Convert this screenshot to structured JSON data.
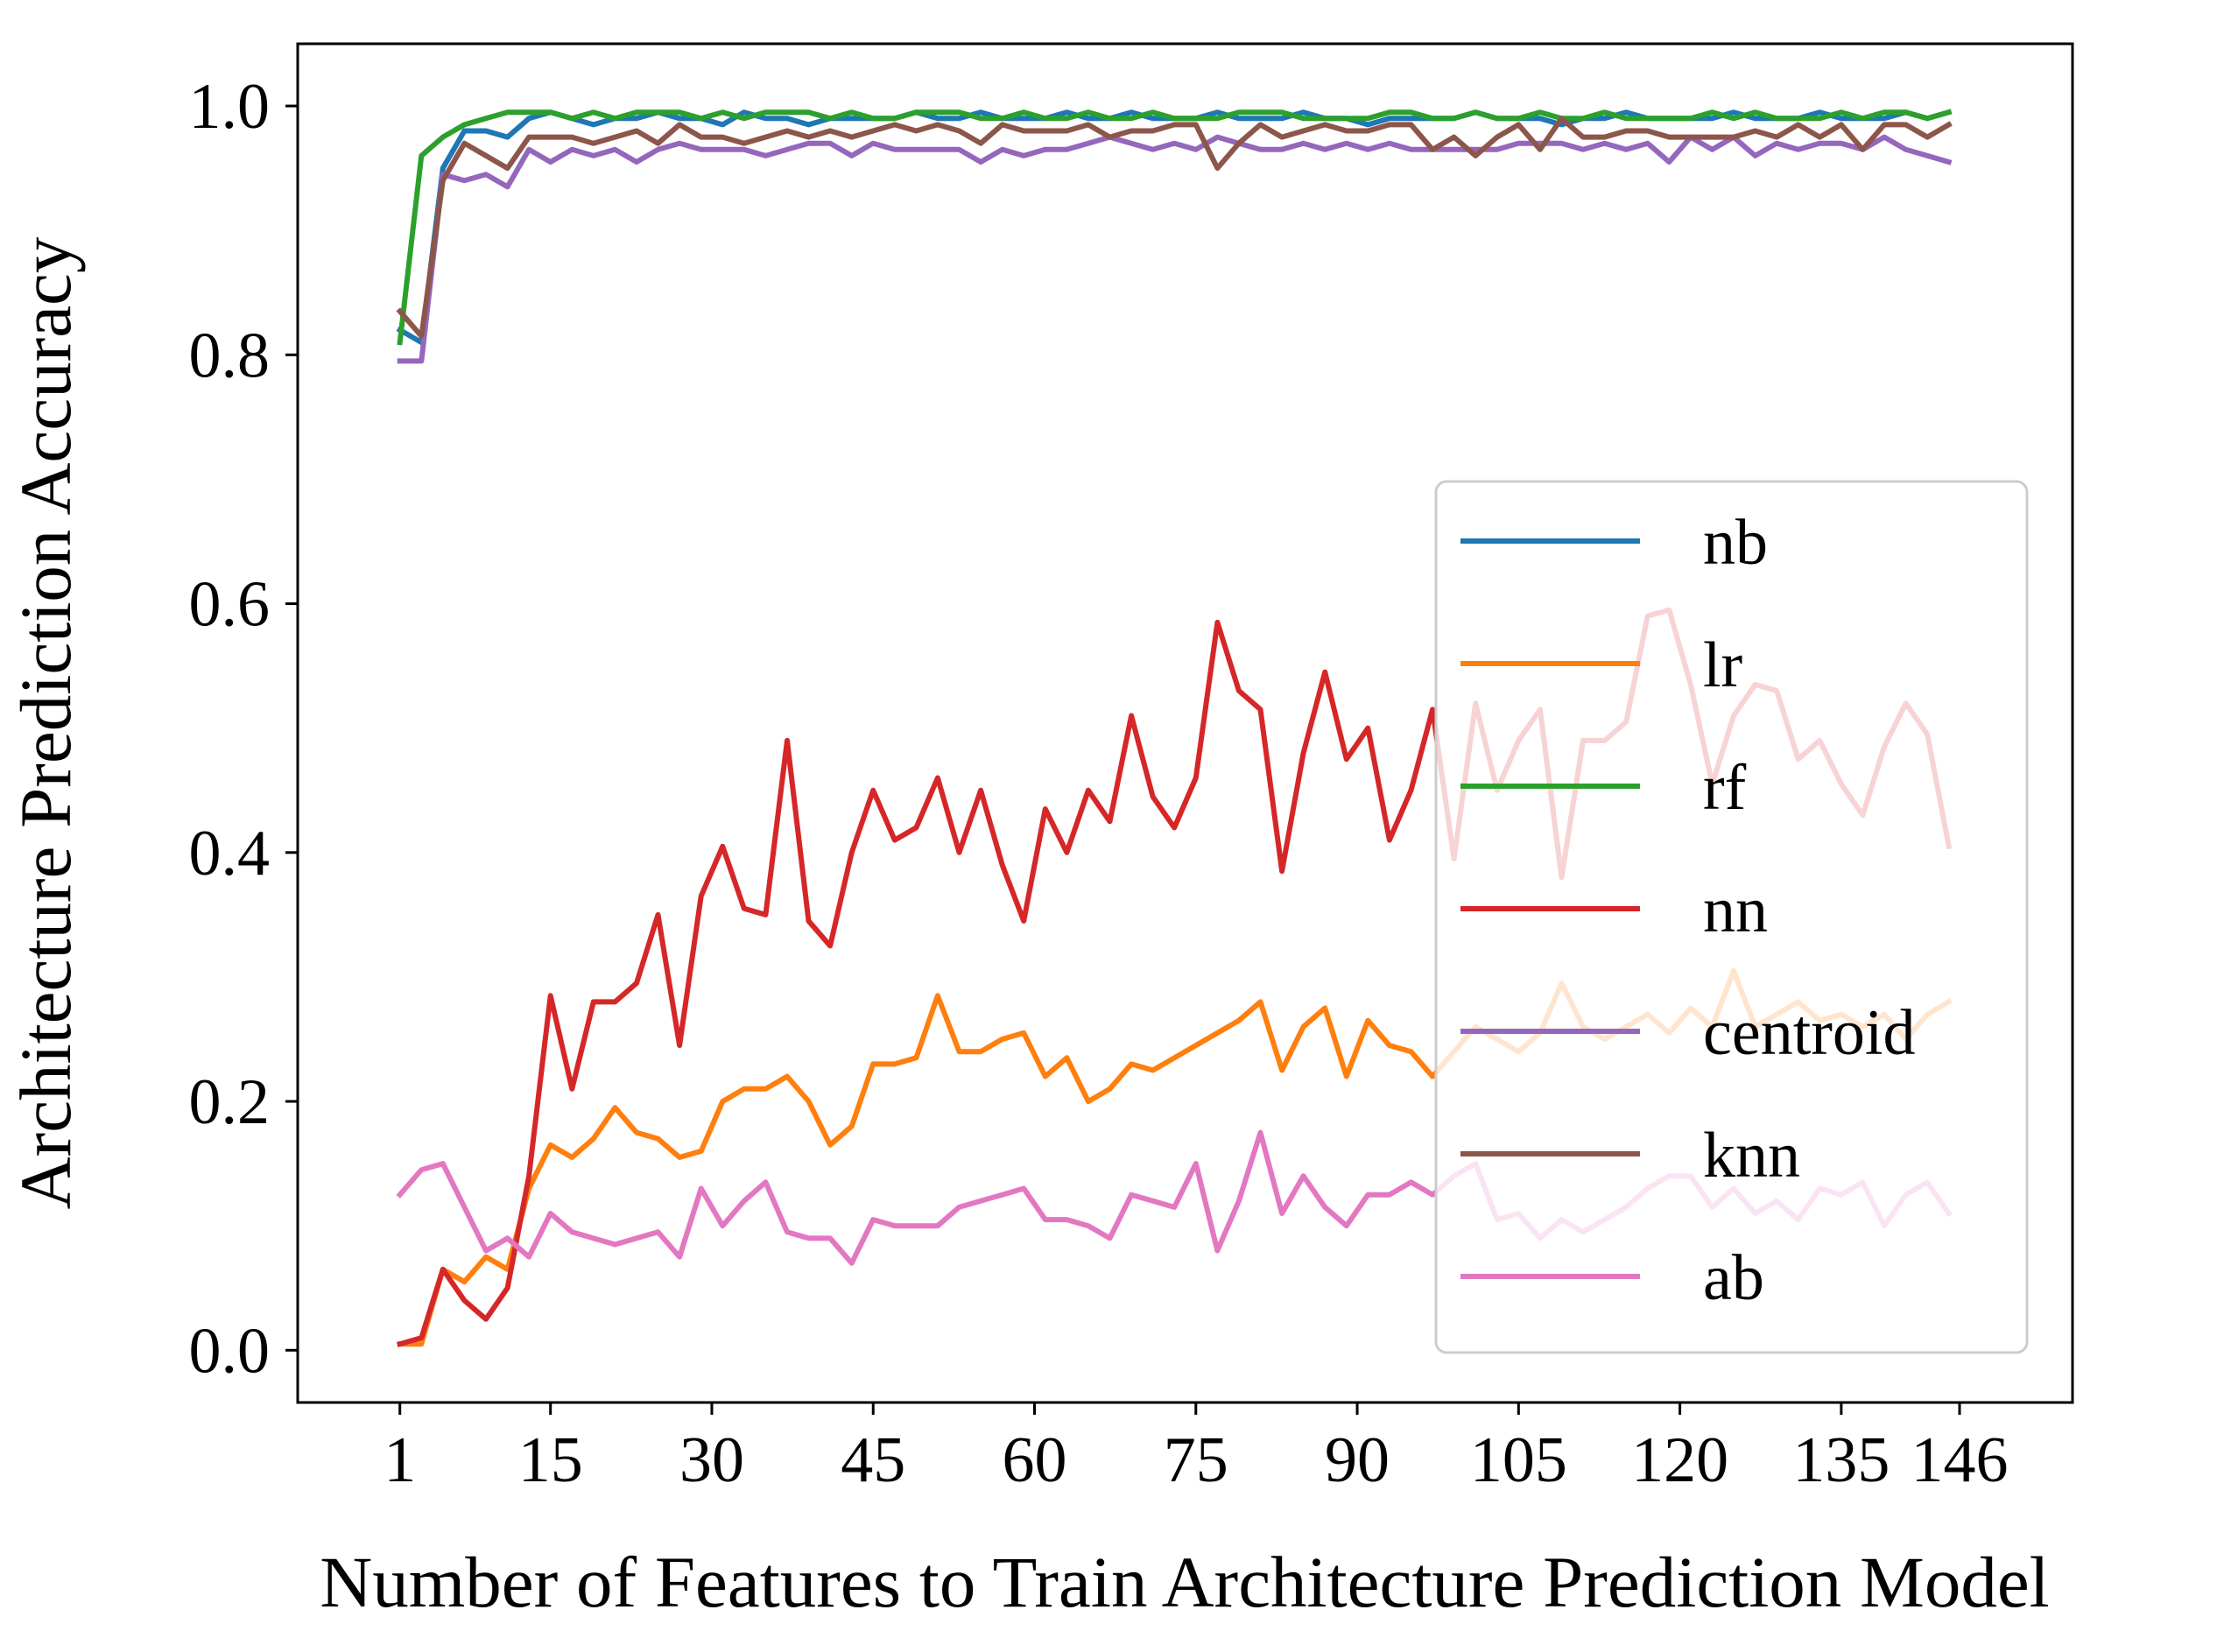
{
  "chart_data": {
    "type": "line",
    "xlabel": "Number of Features to Train Architecture Prediction Model",
    "ylabel": "Architecture Prediction Accuracy",
    "xlim": [
      -8.5,
      156.5
    ],
    "ylim": [
      -0.042,
      1.05
    ],
    "xticks": [
      1,
      15,
      30,
      45,
      60,
      75,
      90,
      105,
      120,
      135,
      146
    ],
    "xtick_labels": [
      "1",
      "15",
      "30",
      "45",
      "60",
      "75",
      "90",
      "105",
      "120",
      "135",
      "146"
    ],
    "yticks": [
      0.0,
      0.2,
      0.4,
      0.6,
      0.8,
      1.0
    ],
    "ytick_labels": [
      "0.0",
      "0.2",
      "0.4",
      "0.6",
      "0.8",
      "1.0"
    ],
    "grid": false,
    "legend_position": "lower-right",
    "x": [
      1,
      3,
      5,
      7,
      9,
      11,
      13,
      15,
      17,
      19,
      21,
      23,
      25,
      27,
      29,
      31,
      33,
      35,
      37,
      39,
      41,
      43,
      45,
      47,
      49,
      51,
      53,
      55,
      57,
      59,
      61,
      63,
      65,
      67,
      69,
      71,
      73,
      75,
      77,
      79,
      81,
      83,
      85,
      87,
      89,
      91,
      93,
      95,
      97,
      99,
      101,
      103,
      105,
      107,
      109,
      111,
      113,
      115,
      117,
      119,
      121,
      123,
      125,
      127,
      129,
      131,
      133,
      135,
      137,
      139,
      141,
      143,
      145
    ],
    "series": [
      {
        "name": "nb",
        "color": "#1f77b4",
        "values": [
          0.82,
          0.81,
          0.95,
          0.98,
          0.98,
          0.975,
          0.99,
          0.995,
          0.99,
          0.985,
          0.99,
          0.99,
          0.995,
          0.99,
          0.99,
          0.985,
          0.995,
          0.99,
          0.99,
          0.985,
          0.99,
          0.99,
          0.99,
          0.99,
          0.995,
          0.99,
          0.99,
          0.995,
          0.99,
          0.99,
          0.99,
          0.995,
          0.99,
          0.99,
          0.995,
          0.99,
          0.99,
          0.99,
          0.995,
          0.99,
          0.99,
          0.99,
          0.995,
          0.99,
          0.99,
          0.985,
          0.99,
          0.99,
          0.99,
          0.99,
          0.995,
          0.99,
          0.99,
          0.99,
          0.985,
          0.99,
          0.99,
          0.995,
          0.99,
          0.99,
          0.99,
          0.99,
          0.995,
          0.99,
          0.99,
          0.99,
          0.995,
          0.99,
          0.99,
          0.99,
          0.995,
          0.99,
          0.995
        ]
      },
      {
        "name": "lr",
        "color": "#ff7f0e",
        "values": [
          0.005,
          0.005,
          0.065,
          0.055,
          0.075,
          0.065,
          0.13,
          0.165,
          0.155,
          0.17,
          0.195,
          0.175,
          0.17,
          0.155,
          0.16,
          0.2,
          0.21,
          0.21,
          0.22,
          0.2,
          0.165,
          0.18,
          0.23,
          0.23,
          0.235,
          0.285,
          0.24,
          0.24,
          0.25,
          0.255,
          0.22,
          0.235,
          0.2,
          0.21,
          0.23,
          0.225,
          0.235,
          0.245,
          0.255,
          0.265,
          0.28,
          0.225,
          0.26,
          0.275,
          0.22,
          0.265,
          0.245,
          0.24,
          0.22,
          0.24,
          0.26,
          0.25,
          0.24,
          0.255,
          0.295,
          0.26,
          0.25,
          0.26,
          0.27,
          0.255,
          0.275,
          0.26,
          0.305,
          0.26,
          0.27,
          0.28,
          0.265,
          0.27,
          0.26,
          0.27,
          0.25,
          0.27,
          0.28
        ]
      },
      {
        "name": "rf",
        "color": "#2ca02c",
        "values": [
          0.81,
          0.96,
          0.975,
          0.985,
          0.99,
          0.995,
          0.995,
          0.995,
          0.99,
          0.995,
          0.99,
          0.995,
          0.995,
          0.995,
          0.99,
          0.995,
          0.99,
          0.995,
          0.995,
          0.995,
          0.99,
          0.995,
          0.99,
          0.99,
          0.995,
          0.995,
          0.995,
          0.99,
          0.99,
          0.995,
          0.99,
          0.99,
          0.995,
          0.99,
          0.99,
          0.995,
          0.99,
          0.99,
          0.99,
          0.995,
          0.995,
          0.995,
          0.99,
          0.99,
          0.99,
          0.99,
          0.995,
          0.995,
          0.99,
          0.99,
          0.995,
          0.99,
          0.99,
          0.995,
          0.99,
          0.99,
          0.995,
          0.99,
          0.99,
          0.99,
          0.99,
          0.995,
          0.99,
          0.995,
          0.99,
          0.99,
          0.99,
          0.995,
          0.99,
          0.995,
          0.995,
          0.99,
          0.995
        ]
      },
      {
        "name": "nn",
        "color": "#d62728",
        "values": [
          0.005,
          0.01,
          0.065,
          0.04,
          0.025,
          0.05,
          0.14,
          0.285,
          0.21,
          0.28,
          0.28,
          0.295,
          0.35,
          0.245,
          0.365,
          0.405,
          0.355,
          0.35,
          0.49,
          0.345,
          0.325,
          0.4,
          0.45,
          0.41,
          0.42,
          0.46,
          0.4,
          0.45,
          0.39,
          0.345,
          0.435,
          0.4,
          0.45,
          0.425,
          0.51,
          0.445,
          0.42,
          0.46,
          0.585,
          0.53,
          0.515,
          0.385,
          0.48,
          0.545,
          0.475,
          0.5,
          0.41,
          0.45,
          0.515,
          0.395,
          0.52,
          0.45,
          0.49,
          0.515,
          0.38,
          0.49,
          0.49,
          0.505,
          0.59,
          0.595,
          0.535,
          0.455,
          0.51,
          0.535,
          0.53,
          0.475,
          0.49,
          0.455,
          0.43,
          0.485,
          0.52,
          0.495,
          0.405
        ]
      },
      {
        "name": "centroid",
        "color": "#9467bd",
        "values": [
          0.795,
          0.795,
          0.945,
          0.94,
          0.945,
          0.935,
          0.965,
          0.955,
          0.965,
          0.96,
          0.965,
          0.955,
          0.965,
          0.97,
          0.965,
          0.965,
          0.965,
          0.96,
          0.965,
          0.97,
          0.97,
          0.96,
          0.97,
          0.965,
          0.965,
          0.965,
          0.965,
          0.955,
          0.965,
          0.96,
          0.965,
          0.965,
          0.97,
          0.975,
          0.97,
          0.965,
          0.97,
          0.965,
          0.975,
          0.97,
          0.965,
          0.965,
          0.97,
          0.965,
          0.97,
          0.965,
          0.97,
          0.965,
          0.965,
          0.965,
          0.965,
          0.965,
          0.97,
          0.97,
          0.97,
          0.965,
          0.97,
          0.965,
          0.97,
          0.955,
          0.975,
          0.965,
          0.975,
          0.96,
          0.97,
          0.965,
          0.97,
          0.97,
          0.965,
          0.975,
          0.965,
          0.96,
          0.955
        ]
      },
      {
        "name": "knn",
        "color": "#8c564b",
        "values": [
          0.835,
          0.815,
          0.94,
          0.97,
          0.96,
          0.95,
          0.975,
          0.975,
          0.975,
          0.97,
          0.975,
          0.98,
          0.97,
          0.985,
          0.975,
          0.975,
          0.97,
          0.975,
          0.98,
          0.975,
          0.98,
          0.975,
          0.98,
          0.985,
          0.98,
          0.985,
          0.98,
          0.97,
          0.985,
          0.98,
          0.98,
          0.98,
          0.985,
          0.975,
          0.98,
          0.98,
          0.985,
          0.985,
          0.95,
          0.97,
          0.985,
          0.975,
          0.98,
          0.985,
          0.98,
          0.98,
          0.985,
          0.985,
          0.965,
          0.975,
          0.96,
          0.975,
          0.985,
          0.965,
          0.99,
          0.975,
          0.975,
          0.98,
          0.98,
          0.975,
          0.975,
          0.975,
          0.975,
          0.98,
          0.975,
          0.985,
          0.975,
          0.985,
          0.965,
          0.985,
          0.985,
          0.975,
          0.985
        ]
      },
      {
        "name": "ab",
        "color": "#e377c2",
        "values": [
          0.125,
          0.145,
          0.15,
          0.115,
          0.08,
          0.09,
          0.075,
          0.11,
          0.095,
          0.09,
          0.085,
          0.09,
          0.095,
          0.075,
          0.13,
          0.1,
          0.12,
          0.135,
          0.095,
          0.09,
          0.09,
          0.07,
          0.105,
          0.1,
          0.1,
          0.1,
          0.115,
          0.12,
          0.125,
          0.13,
          0.105,
          0.105,
          0.1,
          0.09,
          0.125,
          0.12,
          0.115,
          0.15,
          0.08,
          0.12,
          0.175,
          0.11,
          0.14,
          0.115,
          0.1,
          0.125,
          0.125,
          0.135,
          0.125,
          0.14,
          0.15,
          0.105,
          0.11,
          0.09,
          0.105,
          0.095,
          0.105,
          0.115,
          0.13,
          0.14,
          0.14,
          0.115,
          0.13,
          0.11,
          0.12,
          0.105,
          0.13,
          0.125,
          0.135,
          0.1,
          0.125,
          0.135,
          0.11
        ]
      }
    ]
  }
}
